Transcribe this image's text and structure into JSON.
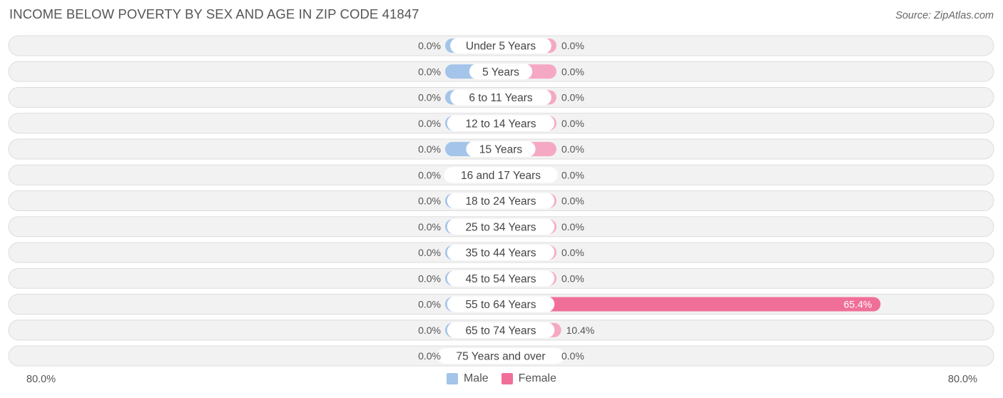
{
  "title": "INCOME BELOW POVERTY BY SEX AND AGE IN ZIP CODE 41847",
  "source": "Source: ZipAtlas.com",
  "colors": {
    "male": "#a4c4ea",
    "female_light": "#f5a8c4",
    "female_strong": "#f06f98",
    "row_bg": "#f2f2f2",
    "row_border": "#dddddd"
  },
  "axis": {
    "left_label": "80.0%",
    "right_label": "80.0%"
  },
  "legend": {
    "male": "Male",
    "female": "Female"
  },
  "chart_data": {
    "type": "bar",
    "orientation": "horizontal-diverging",
    "categories": [
      "Under 5 Years",
      "5 Years",
      "6 to 11 Years",
      "12 to 14 Years",
      "15 Years",
      "16 and 17 Years",
      "18 to 24 Years",
      "25 to 34 Years",
      "35 to 44 Years",
      "45 to 54 Years",
      "55 to 64 Years",
      "65 to 74 Years",
      "75 Years and over"
    ],
    "series": [
      {
        "name": "Male",
        "values": [
          0.0,
          0.0,
          0.0,
          0.0,
          0.0,
          0.0,
          0.0,
          0.0,
          0.0,
          0.0,
          0.0,
          0.0,
          0.0
        ],
        "labels": [
          "0.0%",
          "0.0%",
          "0.0%",
          "0.0%",
          "0.0%",
          "0.0%",
          "0.0%",
          "0.0%",
          "0.0%",
          "0.0%",
          "0.0%",
          "0.0%",
          "0.0%"
        ]
      },
      {
        "name": "Female",
        "values": [
          0.0,
          0.0,
          0.0,
          0.0,
          0.0,
          0.0,
          0.0,
          0.0,
          0.0,
          0.0,
          65.4,
          10.4,
          0.0
        ],
        "labels": [
          "0.0%",
          "0.0%",
          "0.0%",
          "0.0%",
          "0.0%",
          "0.0%",
          "0.0%",
          "0.0%",
          "0.0%",
          "0.0%",
          "65.4%",
          "10.4%",
          "0.0%"
        ]
      }
    ],
    "xlim": [
      -80,
      80
    ],
    "unit": "%"
  }
}
